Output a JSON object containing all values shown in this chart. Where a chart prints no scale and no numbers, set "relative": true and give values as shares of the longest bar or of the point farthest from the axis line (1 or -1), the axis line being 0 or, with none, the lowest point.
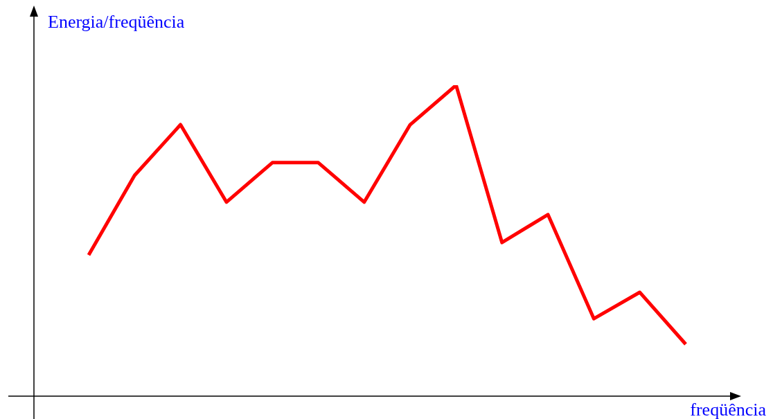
{
  "chart_data": {
    "type": "line",
    "xlabel": "freqüência",
    "ylabel": "Energia/freqüência",
    "relative": true,
    "marker": "none",
    "categories": [
      null,
      null,
      null,
      null,
      null,
      null,
      null,
      null,
      null,
      null,
      null,
      null,
      null,
      null
    ],
    "series": [
      {
        "color": "#ff0000",
        "values": [
          0.454,
          0.71,
          0.873,
          0.624,
          0.751,
          0.751,
          0.624,
          0.873,
          1,
          0.494,
          0.584,
          0.249,
          0.334,
          0.167
        ]
      }
    ]
  }
}
